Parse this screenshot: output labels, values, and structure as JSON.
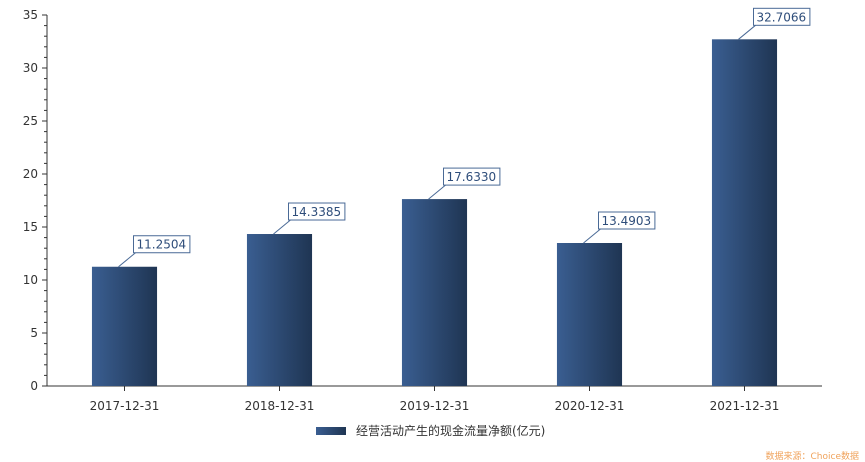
{
  "chart_data": {
    "type": "bar",
    "categories": [
      "2017-12-31",
      "2018-12-31",
      "2019-12-31",
      "2020-12-31",
      "2021-12-31"
    ],
    "series": [
      {
        "name": "经营活动产生的现金流量净额(亿元)",
        "values": [
          11.2504,
          14.3385,
          17.633,
          13.4903,
          32.7066
        ]
      }
    ],
    "data_labels": [
      "11.2504",
      "14.3385",
      "17.6330",
      "13.4903",
      "32.7066"
    ],
    "ylim": [
      0,
      35
    ],
    "yticks": [
      0,
      5,
      10,
      15,
      20,
      25,
      30,
      35
    ],
    "grid": false,
    "legend_position": "bottom-center",
    "colors": {
      "bar_light": "#3a5e91",
      "bar_dark": "#1f3553",
      "label": "#2e4d7a",
      "source": "#f0a35c"
    }
  },
  "source_text": "数据来源：Choice数据"
}
